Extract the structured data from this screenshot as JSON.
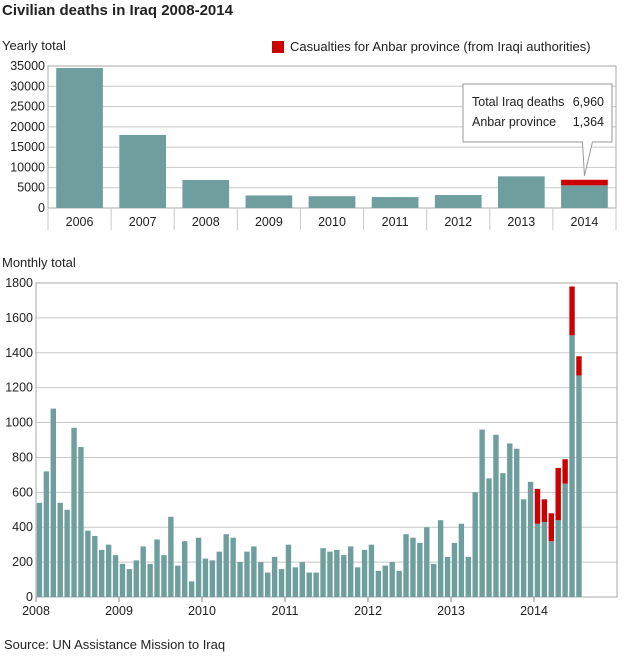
{
  "page": {
    "title": "Civilian deaths in Iraq 2008-2014",
    "source": "Source: UN Assistance Mission to Iraq"
  },
  "legend": {
    "label": "Casualties for Anbar province (from Iraqi authorities)"
  },
  "colors": {
    "bar": "#6f9e9f",
    "anbar": "#cc0000",
    "grid": "#c8c8c8",
    "frame": "#aaaaaa"
  },
  "chart_data": [
    {
      "type": "bar",
      "subtitle": "Yearly total",
      "categories": [
        "2006",
        "2007",
        "2008",
        "2009",
        "2010",
        "2011",
        "2012",
        "2013",
        "2014"
      ],
      "series": [
        {
          "name": "",
          "values": [
            34500,
            18000,
            6900,
            3100,
            2900,
            2700,
            3200,
            7800,
            5596
          ]
        },
        {
          "name": "Casualties for Anbar province (from Iraqi authorities)",
          "values": [
            0,
            0,
            0,
            0,
            0,
            0,
            0,
            0,
            1364
          ]
        }
      ],
      "ylim": [
        0,
        35000
      ],
      "yticks": [
        0,
        5000,
        10000,
        15000,
        20000,
        25000,
        30000,
        35000
      ],
      "stacked": true,
      "grid": true,
      "annotation": {
        "category": "2014",
        "lines": [
          {
            "label": "Total Iraq deaths",
            "value": "6,960"
          },
          {
            "label": "Anbar province",
            "value": "1,364"
          }
        ]
      }
    },
    {
      "type": "bar",
      "subtitle": "Monthly total",
      "x_start": "2008-01",
      "x_ticks": [
        "2008",
        "2009",
        "2010",
        "2011",
        "2012",
        "2013",
        "2014"
      ],
      "series": [
        {
          "name": "",
          "values": [
            540,
            720,
            1080,
            540,
            500,
            970,
            860,
            380,
            350,
            270,
            300,
            240,
            190,
            160,
            210,
            290,
            190,
            330,
            240,
            460,
            180,
            320,
            90,
            340,
            220,
            210,
            260,
            360,
            340,
            200,
            260,
            290,
            200,
            140,
            230,
            160,
            300,
            170,
            200,
            140,
            140,
            280,
            260,
            270,
            240,
            290,
            170,
            270,
            300,
            150,
            180,
            200,
            150,
            360,
            340,
            310,
            400,
            190,
            440,
            230,
            310,
            420,
            230,
            600,
            960,
            680,
            930,
            710,
            880,
            850,
            560,
            660,
            420,
            430,
            320,
            440,
            650,
            1500,
            1270
          ]
        },
        {
          "name": "Casualties for Anbar province (from Iraqi authorities)",
          "values": [
            0,
            0,
            0,
            0,
            0,
            0,
            0,
            0,
            0,
            0,
            0,
            0,
            0,
            0,
            0,
            0,
            0,
            0,
            0,
            0,
            0,
            0,
            0,
            0,
            0,
            0,
            0,
            0,
            0,
            0,
            0,
            0,
            0,
            0,
            0,
            0,
            0,
            0,
            0,
            0,
            0,
            0,
            0,
            0,
            0,
            0,
            0,
            0,
            0,
            0,
            0,
            0,
            0,
            0,
            0,
            0,
            0,
            0,
            0,
            0,
            0,
            0,
            0,
            0,
            0,
            0,
            0,
            0,
            0,
            0,
            0,
            0,
            200,
            130,
            160,
            300,
            140,
            280,
            110
          ]
        }
      ],
      "ylim": [
        0,
        1800
      ],
      "yticks": [
        0,
        200,
        400,
        600,
        800,
        1000,
        1200,
        1400,
        1600,
        1800
      ],
      "stacked": true,
      "grid": true
    }
  ]
}
